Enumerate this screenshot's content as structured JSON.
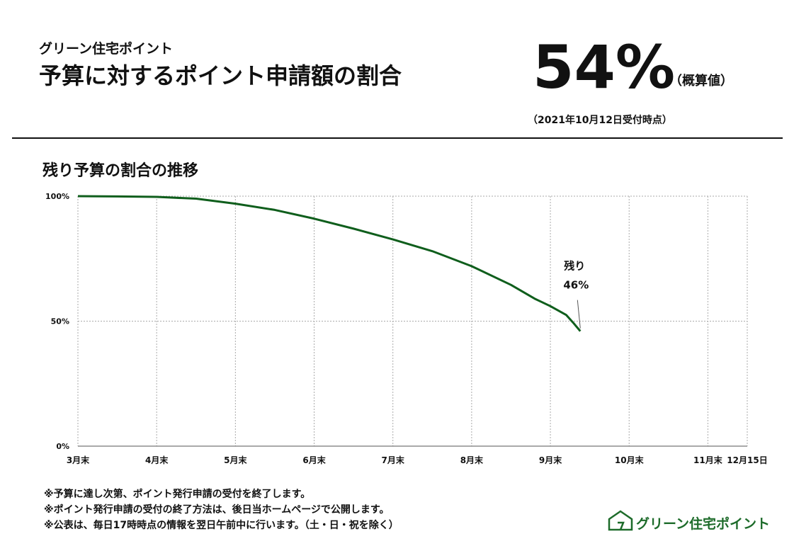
{
  "header": {
    "subtitle": "グリーン住宅ポイント",
    "title": "予算に対するポイント申請額の割合",
    "ratio": "54%",
    "ratio_note": "（概算値）",
    "as_of": "（2021年10月12日受付時点）"
  },
  "chart_data": {
    "type": "line",
    "title": "残り予算の割合の推移",
    "x": [
      3,
      3.5,
      4,
      4.5,
      5,
      5.5,
      6,
      6.5,
      7,
      7.5,
      8,
      8.5,
      8.8,
      9,
      9.2,
      9.3,
      9.38
    ],
    "series": [
      {
        "name": "残り",
        "color": "#0f5e1c",
        "values": [
          100,
          99.9,
          99.7,
          99,
          97,
          94.5,
          91,
          87,
          82.7,
          78,
          72,
          64.5,
          59,
          56,
          52.5,
          49,
          46
        ],
        "value_labels": [
          null,
          null,
          null,
          null,
          null,
          null,
          null,
          null,
          null,
          null,
          null,
          null,
          null,
          null,
          null,
          null,
          "46%"
        ]
      }
    ],
    "xlim": [
      3,
      11.5
    ],
    "xticks": [
      {
        "value": 3,
        "label": "3月末"
      },
      {
        "value": 4,
        "label": "4月末"
      },
      {
        "value": 5,
        "label": "5月末"
      },
      {
        "value": 6,
        "label": "6月末"
      },
      {
        "value": 7,
        "label": "7月末"
      },
      {
        "value": 8,
        "label": "8月末"
      },
      {
        "value": 9,
        "label": "9月末"
      },
      {
        "value": 10,
        "label": "10月末"
      },
      {
        "value": 11,
        "label": "11月末"
      },
      {
        "value": 11.5,
        "label": "12月15日"
      }
    ],
    "ylim": [
      0,
      100
    ],
    "yticks": [
      {
        "value": 0,
        "label": "0%"
      },
      {
        "value": 50,
        "label": "50%"
      },
      {
        "value": 100,
        "label": "100%"
      }
    ],
    "grid": true
  },
  "notes": [
    "※予算に達し次第、ポイント発行申請の受付を終了します。",
    "※ポイント発行申請の受付の終了方法は、後日当ホームページで公開します。",
    "※公表は、毎日17時時点の情報を翌日午前中に行います。（土・日・祝を除く）"
  ],
  "logo": "グリーン住宅ポイント"
}
